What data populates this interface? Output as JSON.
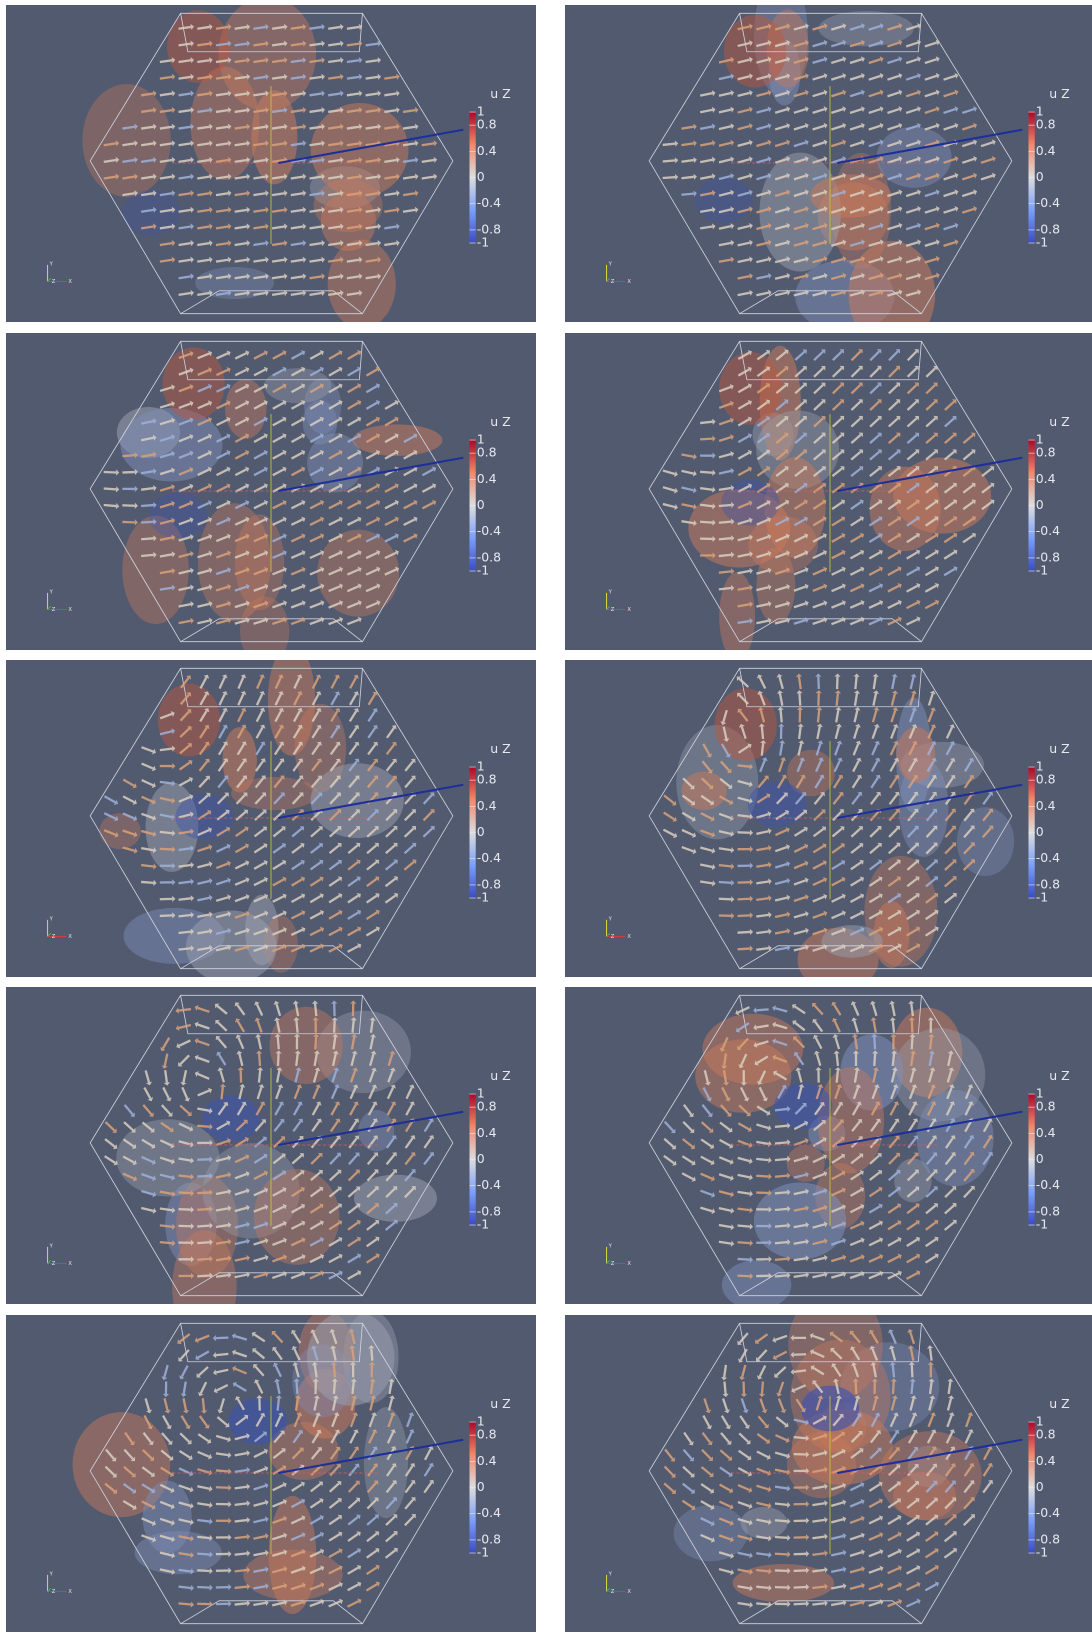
{
  "panels": [
    {
      "colorbar": {
        "title": "u Z",
        "ticks": [
          1,
          0.8,
          0.4,
          0,
          -0.4,
          -0.8,
          -1
        ]
      },
      "axes": {
        "y": "Y",
        "z": "Z",
        "x": "X"
      }
    },
    {
      "colorbar": {
        "title": "u Z",
        "ticks": [
          1,
          0.8,
          0.4,
          0,
          -0.4,
          -0.8,
          -1
        ]
      },
      "axes": {
        "y": "Y",
        "z": "Z",
        "x": "X"
      }
    },
    {
      "colorbar": {
        "title": "u Z",
        "ticks": [
          1,
          0.8,
          0.4,
          0,
          -0.4,
          -0.8,
          -1
        ]
      },
      "axes": {
        "y": "Y",
        "z": "Z",
        "x": "X"
      }
    },
    {
      "colorbar": {
        "title": "u Z",
        "ticks": [
          1,
          0.8,
          0.4,
          0,
          -0.4,
          -0.8,
          -1
        ]
      },
      "axes": {
        "y": "Y",
        "z": "Z",
        "x": "X"
      }
    },
    {
      "colorbar": {
        "title": "u Z",
        "ticks": [
          1,
          0.8,
          0.4,
          0,
          -0.4,
          -0.8,
          -1
        ]
      },
      "axes": {
        "y": "Y",
        "z": "Z",
        "x": "X"
      }
    },
    {
      "colorbar": {
        "title": "u Z",
        "ticks": [
          1,
          0.8,
          0.4,
          0,
          -0.4,
          -0.8,
          -1
        ]
      },
      "axes": {
        "y": "Y",
        "z": "Z",
        "x": "X"
      }
    },
    {
      "colorbar": {
        "title": "u Z",
        "ticks": [
          1,
          0.8,
          0.4,
          0,
          -0.4,
          -0.8,
          -1
        ]
      },
      "axes": {
        "y": "Y",
        "z": "Z",
        "x": "X"
      }
    },
    {
      "colorbar": {
        "title": "u Z",
        "ticks": [
          1,
          0.8,
          0.4,
          0,
          -0.4,
          -0.8,
          -1
        ]
      },
      "axes": {
        "y": "Y",
        "z": "Z",
        "x": "X"
      }
    },
    {
      "colorbar": {
        "title": "u Z",
        "ticks": [
          1,
          0.8,
          0.4,
          0,
          -0.4,
          -0.8,
          -1
        ]
      },
      "axes": {
        "y": "Y",
        "z": "Z",
        "x": "X"
      }
    },
    {
      "colorbar": {
        "title": "u Z",
        "ticks": [
          1,
          0.8,
          0.4,
          0,
          -0.4,
          -0.8,
          -1
        ]
      },
      "axes": {
        "y": "Y",
        "z": "Z",
        "x": "X"
      }
    }
  ]
}
